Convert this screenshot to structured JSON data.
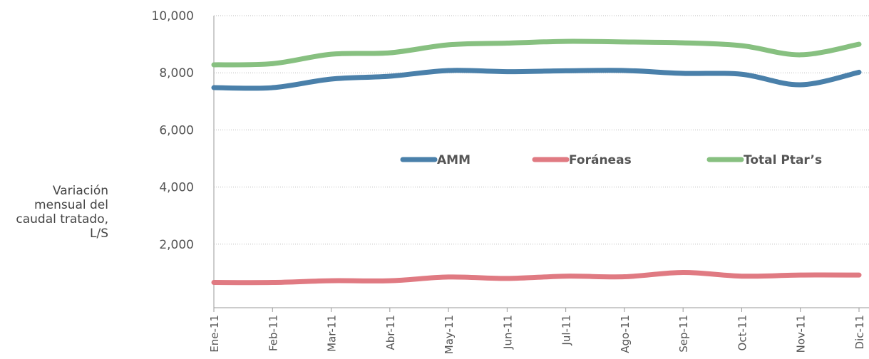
{
  "chart_data": {
    "type": "line",
    "y_label": "Variación mensual del caudal tratado, L/S",
    "categories": [
      "Ene-11",
      "Feb-11",
      "Mar-11",
      "Abr-11",
      "May-11",
      "Jun-11",
      "Jul-11",
      "Ago-11",
      "Sep-11",
      "Oct-11",
      "Nov-11",
      "Dic-11"
    ],
    "series": [
      {
        "name": "AMM",
        "color": "#4a80aa",
        "values": [
          7480,
          7480,
          7780,
          7880,
          8080,
          8040,
          8070,
          8080,
          7980,
          7950,
          7580,
          8020
        ]
      },
      {
        "name": "Foráneas",
        "color": "#e07a82",
        "values": [
          660,
          660,
          720,
          720,
          850,
          800,
          880,
          860,
          1010,
          880,
          920,
          920
        ]
      },
      {
        "name": "Total Ptar’s",
        "color": "#87c080",
        "values": [
          8280,
          8320,
          8650,
          8700,
          8980,
          9040,
          9100,
          9080,
          9050,
          8950,
          8630,
          9000
        ]
      }
    ],
    "ylim": [
      0,
      10000
    ],
    "yticks": [
      {
        "value": 2000,
        "label": "2,000"
      },
      {
        "value": 4000,
        "label": "4,000"
      },
      {
        "value": 6000,
        "label": "6,000"
      },
      {
        "value": 8000,
        "label": "8,000"
      },
      {
        "value": 10000,
        "label": "10,000"
      }
    ],
    "grid": true,
    "legend": "center"
  }
}
